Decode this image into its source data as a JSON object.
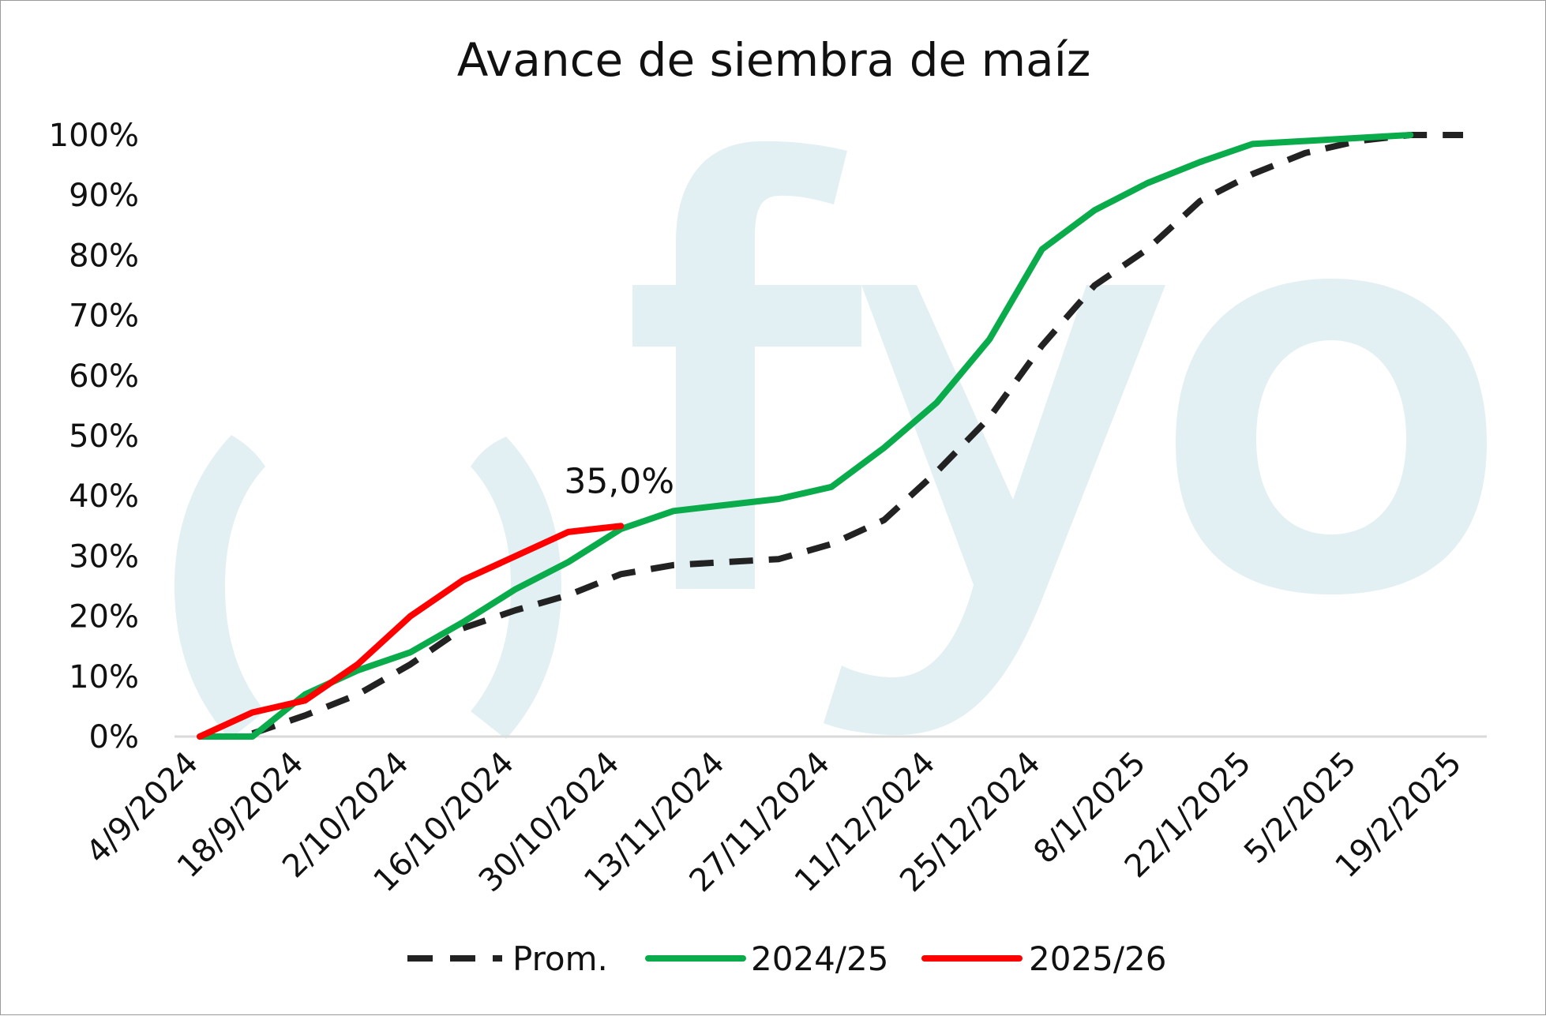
{
  "chart_data": {
    "type": "line",
    "title": "Avance de siembra de maíz",
    "x": [
      "4/9/2024",
      "11/9/2024",
      "18/9/2024",
      "25/9/2024",
      "2/10/2024",
      "9/10/2024",
      "16/10/2024",
      "23/10/2024",
      "30/10/2024",
      "6/11/2024",
      "13/11/2024",
      "20/11/2024",
      "27/11/2024",
      "4/12/2024",
      "11/12/2024",
      "18/12/2024",
      "25/12/2024",
      "1/1/2025",
      "8/1/2025",
      "15/1/2025",
      "22/1/2025",
      "29/1/2025",
      "5/2/2025",
      "12/2/2025",
      "19/2/2025"
    ],
    "x_tick_labels": [
      "4/9/2024",
      "18/9/2024",
      "2/10/2024",
      "16/10/2024",
      "30/10/2024",
      "13/11/2024",
      "27/11/2024",
      "11/12/2024",
      "25/12/2024",
      "8/1/2025",
      "22/1/2025",
      "5/2/2025",
      "19/2/2025"
    ],
    "y_tick_labels": [
      "0%",
      "10%",
      "20%",
      "30%",
      "40%",
      "50%",
      "60%",
      "70%",
      "80%",
      "90%",
      "100%"
    ],
    "ylim": [
      0,
      100
    ],
    "series": [
      {
        "name": "Prom.",
        "style": "dashed",
        "color": "#222222",
        "x": [
          "11/9/2024",
          "18/9/2024",
          "25/9/2024",
          "2/10/2024",
          "9/10/2024",
          "16/10/2024",
          "23/10/2024",
          "30/10/2024",
          "6/11/2024",
          "13/11/2024",
          "20/11/2024",
          "27/11/2024",
          "4/12/2024",
          "11/12/2024",
          "18/12/2024",
          "25/12/2024",
          "1/1/2025",
          "8/1/2025",
          "15/1/2025",
          "22/1/2025",
          "29/1/2025",
          "5/2/2025",
          "12/2/2025",
          "19/2/2025"
        ],
        "values": [
          0.5,
          3.5,
          7,
          12,
          18,
          21,
          23.5,
          27,
          28.5,
          29,
          29.5,
          32,
          36,
          44,
          53,
          65,
          75,
          81,
          89,
          93.5,
          97,
          99,
          100,
          100
        ]
      },
      {
        "name": "2024/25",
        "style": "solid",
        "color": "#0aab4a",
        "x": [
          "4/9/2024",
          "11/9/2024",
          "18/9/2024",
          "25/9/2024",
          "2/10/2024",
          "9/10/2024",
          "16/10/2024",
          "23/10/2024",
          "30/10/2024",
          "6/11/2024",
          "13/11/2024",
          "20/11/2024",
          "27/11/2024",
          "4/12/2024",
          "11/12/2024",
          "18/12/2024",
          "25/12/2024",
          "1/1/2025",
          "8/1/2025",
          "15/1/2025",
          "22/1/2025",
          "29/1/2025",
          "5/2/2025",
          "12/2/2025"
        ],
        "values": [
          0,
          0,
          7,
          11,
          14,
          19,
          24.5,
          29,
          34.5,
          37.5,
          38.5,
          39.5,
          41.5,
          48,
          55.5,
          66,
          81,
          87.5,
          92,
          95.5,
          98.5,
          99,
          99.5,
          100
        ]
      },
      {
        "name": "2025/26",
        "style": "solid",
        "color": "#ff0000",
        "x": [
          "4/9/2024",
          "11/9/2024",
          "18/9/2024",
          "25/9/2024",
          "2/10/2024",
          "9/10/2024",
          "16/10/2024",
          "23/10/2024",
          "30/10/2024"
        ],
        "values": [
          0,
          4,
          6,
          12,
          20,
          26,
          30,
          34,
          35
        ]
      }
    ],
    "annotation": {
      "text": "35,0%",
      "series": "2025/26",
      "x": "30/10/2024",
      "y": 35
    },
    "legend_position": "bottom",
    "grid": false
  },
  "watermark": {
    "text": "()fyo",
    "color": "#e2f0f4"
  }
}
